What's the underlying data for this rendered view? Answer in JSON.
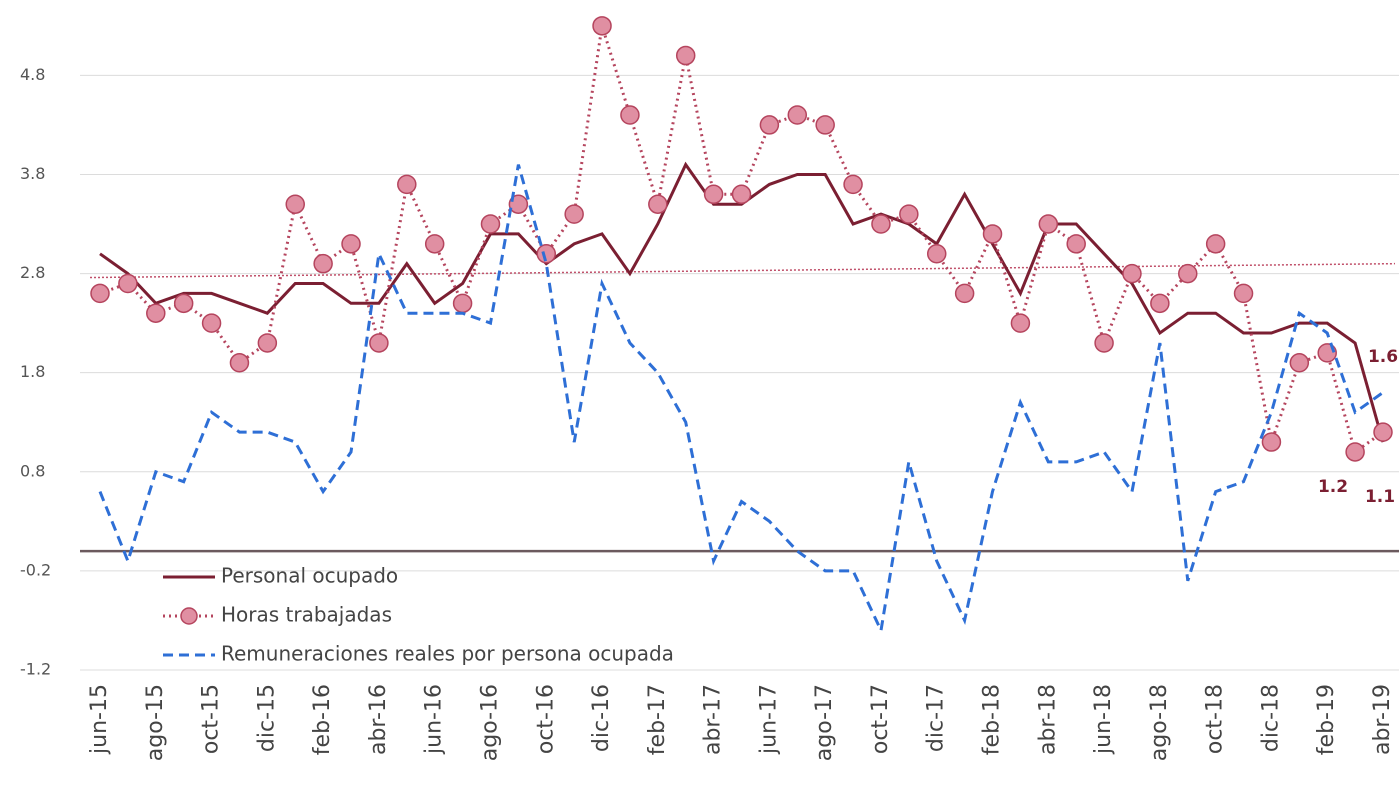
{
  "chart_data": {
    "type": "line",
    "categories": [
      "jun-15",
      null,
      "ago-15",
      null,
      "oct-15",
      null,
      "dic-15",
      null,
      "feb-16",
      null,
      "abr-16",
      null,
      "jun-16",
      null,
      "ago-16",
      null,
      "oct-16",
      null,
      "dic-16",
      null,
      "feb-17",
      null,
      "abr-17",
      null,
      "jun-17",
      null,
      "ago-17",
      null,
      "oct-17",
      null,
      "dic-17",
      null,
      "feb-18",
      null,
      "abr-18",
      null,
      "jun-18",
      null,
      "ago-18",
      null,
      "oct-18",
      null,
      "dic-18",
      null,
      "feb-19",
      null,
      "abr-19"
    ],
    "series": [
      {
        "name": "Personal ocupado",
        "color": "#7b1f32",
        "style": "solid",
        "marker": false,
        "values": [
          3.0,
          2.8,
          2.5,
          2.6,
          2.6,
          2.5,
          2.4,
          2.7,
          2.7,
          2.5,
          2.5,
          2.9,
          2.5,
          2.7,
          3.2,
          3.2,
          2.9,
          3.1,
          3.2,
          2.8,
          3.3,
          3.9,
          3.5,
          3.5,
          3.7,
          3.8,
          3.8,
          3.3,
          3.4,
          3.3,
          3.1,
          3.6,
          3.1,
          2.6,
          3.3,
          3.3,
          3.0,
          2.7,
          2.2,
          2.4,
          2.4,
          2.2,
          2.2,
          2.3,
          2.3,
          2.1,
          1.1
        ]
      },
      {
        "name": "Horas trabajadas",
        "color": "#b5455e",
        "style": "dotted",
        "marker": true,
        "marker_color": "#e08fa2",
        "values": [
          2.6,
          2.7,
          2.4,
          2.5,
          2.3,
          1.9,
          2.1,
          3.5,
          2.9,
          3.1,
          2.1,
          3.7,
          3.1,
          2.5,
          3.3,
          3.5,
          3.0,
          3.4,
          5.3,
          4.4,
          3.5,
          5.0,
          3.6,
          3.6,
          4.3,
          4.4,
          4.3,
          3.7,
          3.3,
          3.4,
          3.0,
          2.6,
          3.2,
          2.3,
          3.3,
          3.1,
          2.1,
          2.8,
          2.5,
          2.8,
          3.1,
          2.6,
          1.1,
          1.9,
          2.0,
          1.0,
          1.2
        ]
      },
      {
        "name": "Remuneraciones reales por persona ocupada",
        "color": "#2e6fd6",
        "style": "dashed",
        "marker": false,
        "values": [
          0.6,
          -0.1,
          0.8,
          0.7,
          1.4,
          1.2,
          1.2,
          1.1,
          0.6,
          1.0,
          3.0,
          2.4,
          2.4,
          2.4,
          2.3,
          3.9,
          2.9,
          1.1,
          2.7,
          2.1,
          1.8,
          1.3,
          -0.1,
          0.5,
          0.3,
          0.0,
          -0.2,
          -0.2,
          -0.8,
          0.9,
          -0.1,
          -0.7,
          0.6,
          1.5,
          0.9,
          0.9,
          1.0,
          0.6,
          2.1,
          -0.3,
          0.6,
          0.7,
          1.4,
          2.4,
          2.2,
          1.4,
          1.6
        ]
      }
    ],
    "trend_ends": [
      2.76,
      2.9
    ],
    "trend_color": "#c0506a",
    "ylim": [
      -1.2,
      5.5
    ],
    "yticks": [
      -1.2,
      -0.2,
      0.8,
      1.8,
      2.8,
      3.8,
      4.8
    ],
    "grid": true
  }
}
